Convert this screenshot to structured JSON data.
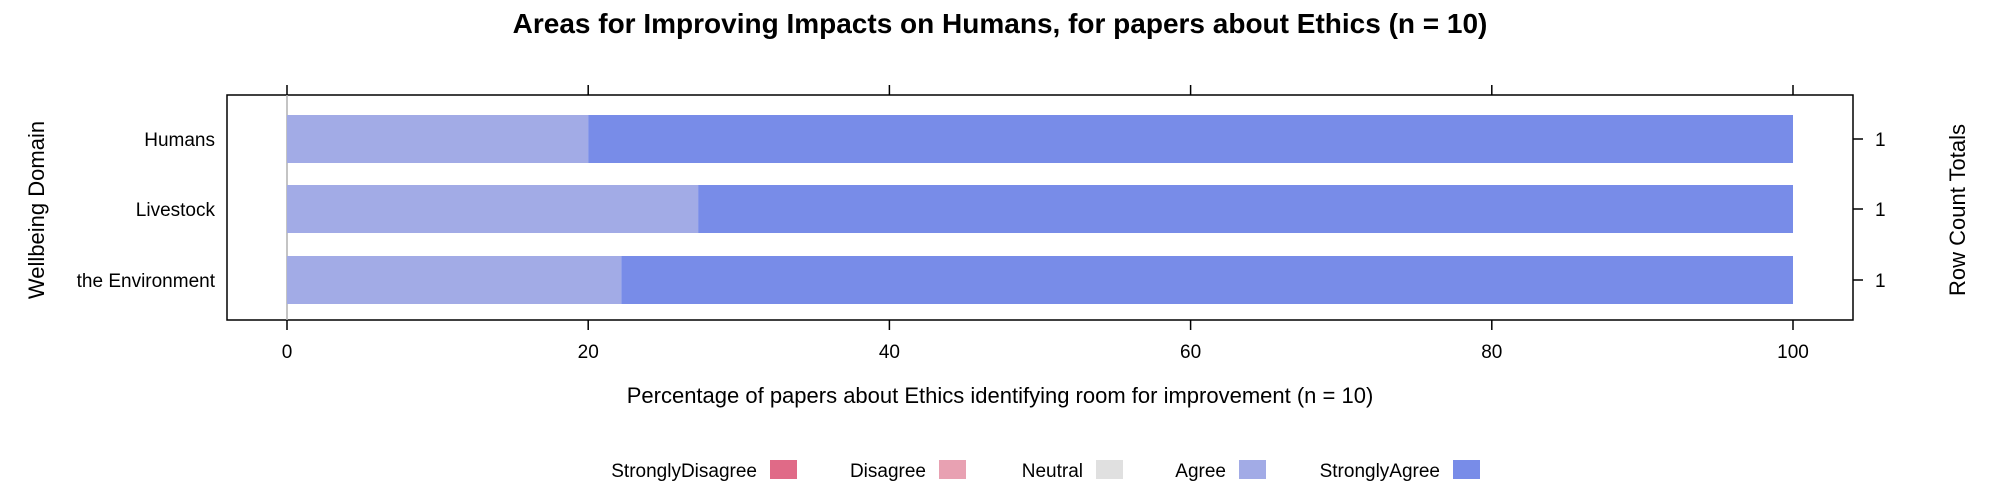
{
  "chart_data": {
    "type": "bar",
    "orientation": "horizontal",
    "stacked": true,
    "title": "Areas for Improving Impacts on Humans, for papers about Ethics (n = 10)",
    "xlabel": "Percentage of papers about Ethics identifying room for improvement (n = 10)",
    "ylabel": "Wellbeing Domain",
    "ylabel_right": "Row Count Totals",
    "xlim": [
      0,
      100
    ],
    "xticks": [
      "0",
      "20",
      "40",
      "60",
      "80",
      "100"
    ],
    "categories": [
      "Humans",
      "Livestock",
      "the Environment"
    ],
    "row_totals": [
      "1",
      "1",
      "1"
    ],
    "series": [
      {
        "name": "StronglyDisagree",
        "color": "#e06a87",
        "values": [
          0,
          0,
          0
        ]
      },
      {
        "name": "Disagree",
        "color": "#e8a1b2",
        "values": [
          0,
          0,
          0
        ]
      },
      {
        "name": "Neutral",
        "color": "#e0e0e0",
        "values": [
          0,
          0,
          0
        ]
      },
      {
        "name": "Agree",
        "color": "#a2abe6",
        "values": [
          20,
          27.3,
          22.2
        ]
      },
      {
        "name": "StronglyAgree",
        "color": "#788ce8",
        "values": [
          80,
          72.7,
          77.8
        ]
      }
    ],
    "legend_position": "bottom"
  }
}
